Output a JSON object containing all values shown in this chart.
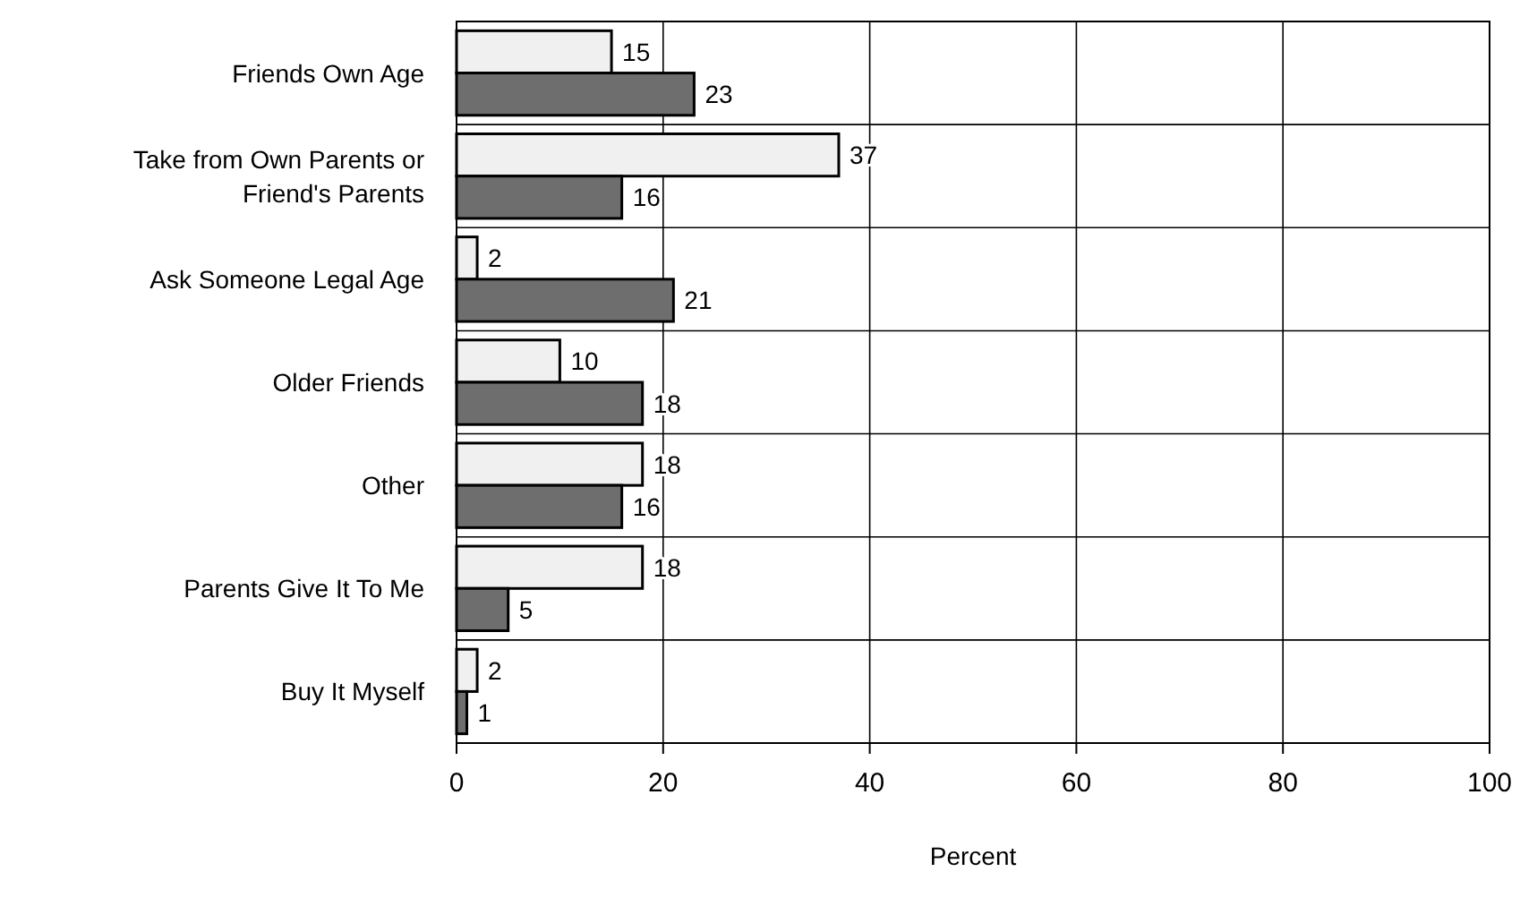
{
  "chart_data": {
    "type": "bar",
    "orientation": "horizontal",
    "xlabel": "Percent",
    "categories": [
      "Friends Own Age",
      "Take from Own Parents or Friend's Parents",
      "Ask Someone Legal Age",
      "Older Friends",
      "Other",
      "Parents Give It To Me",
      "Buy It Myself"
    ],
    "series": [
      {
        "color": "#f0f0f0",
        "values": [
          15,
          37,
          2,
          10,
          18,
          18,
          2
        ]
      },
      {
        "color": "#6e6e6e",
        "values": [
          23,
          16,
          21,
          18,
          16,
          5,
          1
        ]
      }
    ],
    "xlim": [
      0,
      100
    ],
    "xticks": [
      0,
      20,
      40,
      60,
      80,
      100
    ],
    "grid": true,
    "data_labels": true
  }
}
